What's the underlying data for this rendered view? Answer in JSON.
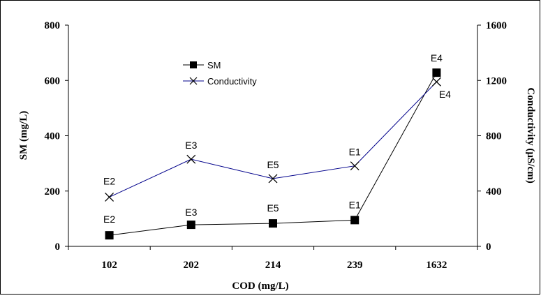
{
  "chart_data": {
    "type": "line",
    "categories": [
      "102",
      "202",
      "214",
      "239",
      "1632"
    ],
    "xlabel": "COD (mg/L)",
    "ylabel": "SM (mg/L)",
    "y2label": "Conductivity (µS/cm)",
    "ylim": [
      0,
      800
    ],
    "y2lim": [
      0,
      1600
    ],
    "yticks": [
      "0",
      "200",
      "400",
      "600",
      "800"
    ],
    "y2ticks": [
      "0",
      "400",
      "800",
      "1200",
      "1600"
    ],
    "legend_position": "upper-center",
    "grid": false,
    "series": [
      {
        "name": "SM",
        "axis": "left",
        "marker": "square",
        "color": "#000000",
        "values": [
          40,
          78,
          83,
          95,
          628
        ],
        "point_labels": [
          "E2",
          "E3",
          "E5",
          "E1",
          "E4"
        ]
      },
      {
        "name": "Conductivity",
        "axis": "right",
        "marker": "x",
        "color": "#00008B",
        "values": [
          356,
          630,
          490,
          582,
          1190
        ],
        "point_labels": [
          "E2",
          "E3",
          "E5",
          "E1",
          "E4"
        ]
      }
    ]
  }
}
